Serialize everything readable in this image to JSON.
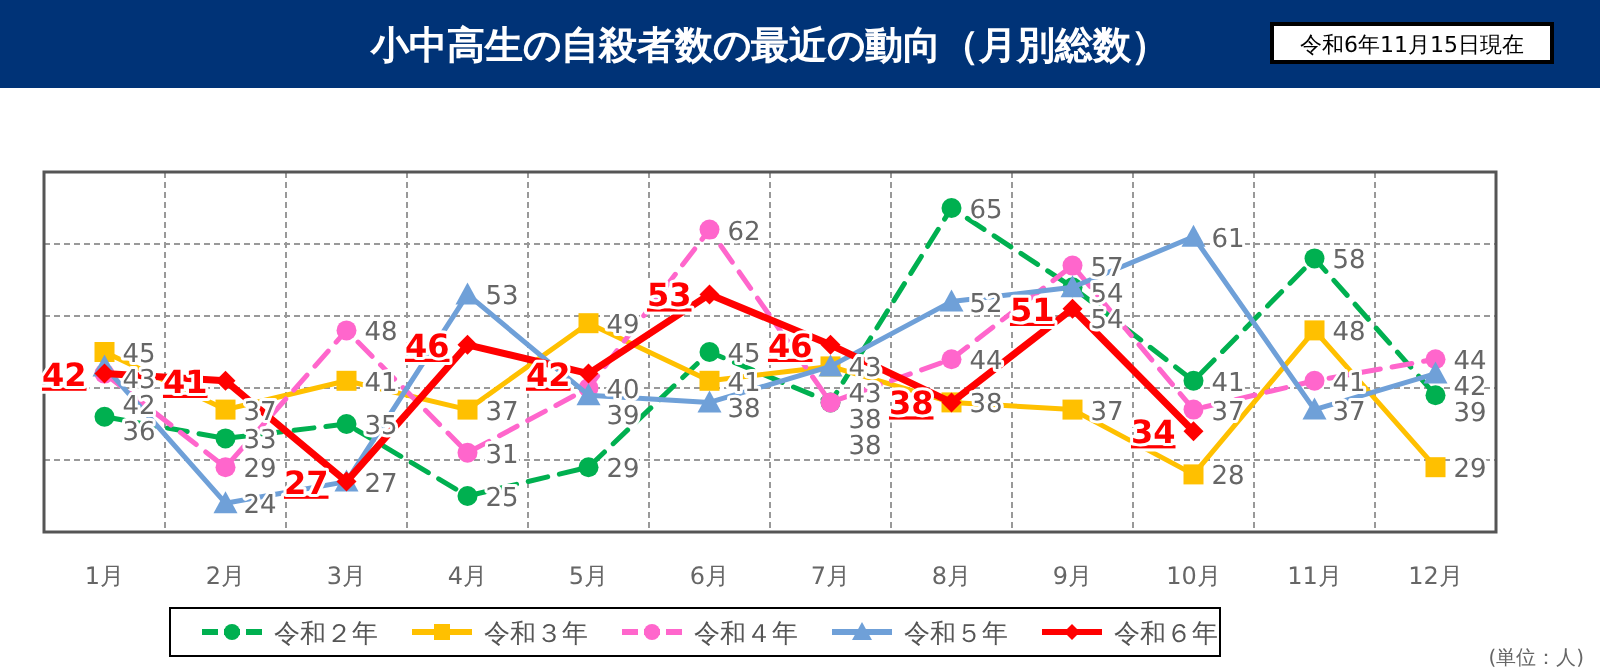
{
  "chart_data": {
    "type": "line",
    "title": "小中高生の自殺者数の最近の動向（月別総数）",
    "subtitle": "令和6年11月15日現在",
    "categories": [
      "1月",
      "2月",
      "3月",
      "4月",
      "5月",
      "6月",
      "7月",
      "8月",
      "9月",
      "10月",
      "11月",
      "12月"
    ],
    "series": [
      {
        "name": "令和２年",
        "color": "#00b050",
        "marker": "circle",
        "line_style": "dashed",
        "values": [
          36,
          33,
          35,
          25,
          29,
          45,
          38,
          65,
          54,
          41,
          58,
          39
        ]
      },
      {
        "name": "令和３年",
        "color": "#ffc000",
        "marker": "square",
        "line_style": "solid",
        "values": [
          45,
          37,
          41,
          37,
          49,
          41,
          43,
          38,
          37,
          28,
          48,
          29
        ]
      },
      {
        "name": "令和４年",
        "color": "#ff66cc",
        "marker": "circle",
        "line_style": "dashed",
        "values": [
          42,
          29,
          48,
          31,
          40,
          62,
          38,
          44,
          57,
          37,
          41,
          44
        ]
      },
      {
        "name": "令和５年",
        "color": "#6fa0d8",
        "marker": "triangle",
        "line_style": "solid",
        "values": [
          43,
          24,
          27,
          53,
          39,
          38,
          43,
          52,
          54,
          61,
          37,
          42
        ]
      },
      {
        "name": "令和６年",
        "color": "#ff0000",
        "marker": "diamond",
        "line_style": "solid",
        "values": [
          42,
          41,
          27,
          46,
          42,
          53,
          46,
          38,
          51,
          34,
          null,
          null
        ]
      }
    ],
    "ylim": [
      20,
      70
    ],
    "yticks": [
      {
        "value": 20,
        "label": null
      },
      {
        "value": 30,
        "label": null
      },
      {
        "value": 40,
        "label": null
      },
      {
        "value": 50,
        "label": null
      },
      {
        "value": 60,
        "label": null
      },
      {
        "value": 70,
        "label": null
      }
    ],
    "grid": true,
    "tick_labels": "x",
    "data_labels": true,
    "legend": "bottom",
    "annotations": [
      "(単位：人)"
    ]
  }
}
